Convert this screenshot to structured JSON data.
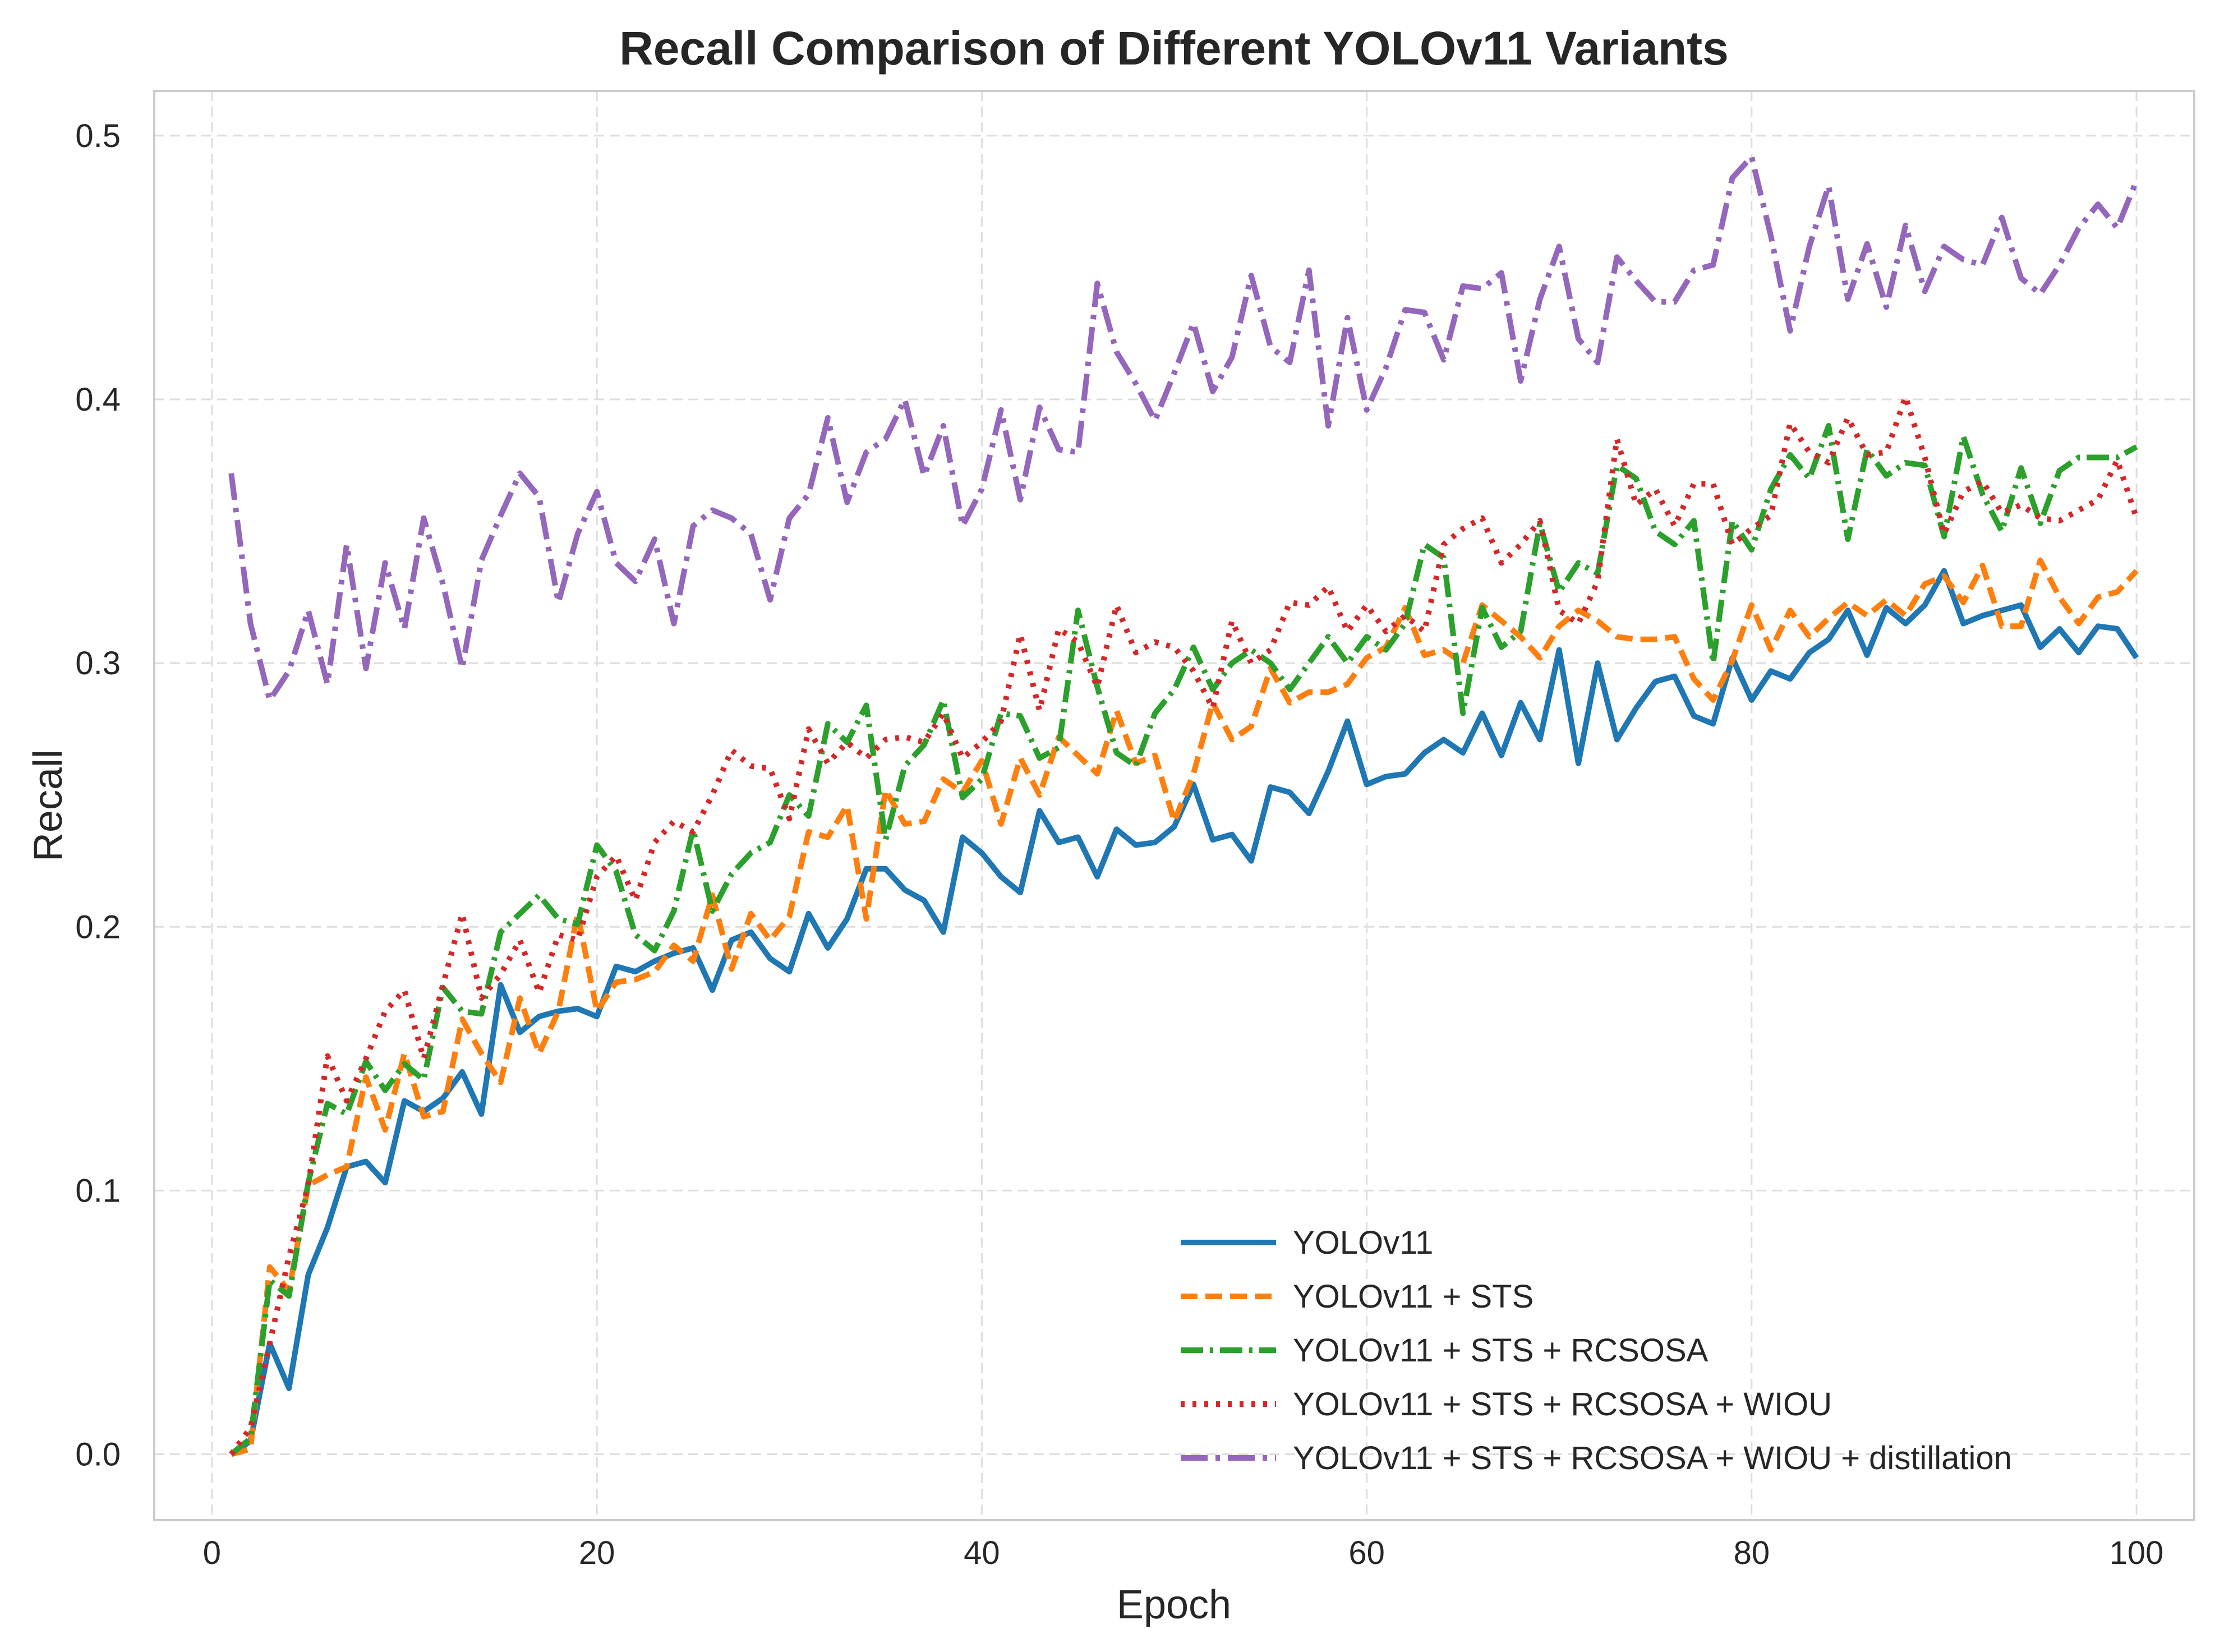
{
  "chart_data": {
    "type": "line",
    "title": "Recall Comparison of Different YOLOv11 Variants",
    "xlabel": "Epoch",
    "ylabel": "Recall",
    "xlim": [
      -3,
      103
    ],
    "ylim": [
      -0.025,
      0.517
    ],
    "xticks": [
      0,
      20,
      40,
      60,
      80,
      100
    ],
    "yticks": [
      0.0,
      0.1,
      0.2,
      0.3,
      0.4,
      0.5
    ],
    "xtick_labels": [
      "0",
      "20",
      "40",
      "60",
      "80",
      "100"
    ],
    "ytick_labels": [
      "0.0",
      "0.1",
      "0.2",
      "0.3",
      "0.4",
      "0.5"
    ],
    "grid": true,
    "legend_position": "lower-right",
    "x": [
      1,
      2,
      3,
      4,
      5,
      6,
      7,
      8,
      9,
      10,
      11,
      12,
      13,
      14,
      15,
      16,
      17,
      18,
      19,
      20,
      21,
      22,
      23,
      24,
      25,
      26,
      27,
      28,
      29,
      30,
      31,
      32,
      33,
      34,
      35,
      36,
      37,
      38,
      39,
      40,
      41,
      42,
      43,
      44,
      45,
      46,
      47,
      48,
      49,
      50,
      51,
      52,
      53,
      54,
      55,
      56,
      57,
      58,
      59,
      60,
      61,
      62,
      63,
      64,
      65,
      66,
      67,
      68,
      69,
      70,
      71,
      72,
      73,
      74,
      75,
      76,
      77,
      78,
      79,
      80,
      81,
      82,
      83,
      84,
      85,
      86,
      87,
      88,
      89,
      90,
      91,
      92,
      93,
      94,
      95,
      96,
      97,
      98,
      99,
      100
    ],
    "series": [
      {
        "name": "YOLOv11",
        "color": "#1f77b4",
        "style": "solid",
        "values": [
          0.0,
          0.005,
          0.042,
          0.025,
          0.068,
          0.086,
          0.109,
          0.111,
          0.103,
          0.134,
          0.13,
          0.135,
          0.145,
          0.129,
          0.178,
          0.16,
          0.166,
          0.168,
          0.169,
          0.166,
          0.185,
          0.183,
          0.187,
          0.19,
          0.192,
          0.176,
          0.195,
          0.198,
          0.188,
          0.183,
          0.205,
          0.192,
          0.203,
          0.222,
          0.222,
          0.214,
          0.21,
          0.198,
          0.234,
          0.228,
          0.219,
          0.213,
          0.244,
          0.232,
          0.234,
          0.219,
          0.237,
          0.231,
          0.232,
          0.238,
          0.254,
          0.233,
          0.235,
          0.225,
          0.253,
          0.251,
          0.243,
          0.259,
          0.278,
          0.254,
          0.257,
          0.258,
          0.266,
          0.271,
          0.266,
          0.281,
          0.265,
          0.285,
          0.271,
          0.305,
          0.262,
          0.3,
          0.271,
          0.283,
          0.293,
          0.295,
          0.28,
          0.277,
          0.302,
          0.286,
          0.297,
          0.294,
          0.304,
          0.309,
          0.32,
          0.303,
          0.321,
          0.315,
          0.322,
          0.335,
          0.315,
          0.318,
          0.32,
          0.322,
          0.306,
          0.313,
          0.304,
          0.314,
          0.313,
          0.302
        ]
      },
      {
        "name": "YOLOv11 + STS",
        "color": "#ff7f0e",
        "style": "dashed",
        "values": [
          0.0,
          0.002,
          0.071,
          0.062,
          0.102,
          0.106,
          0.109,
          0.143,
          0.123,
          0.152,
          0.128,
          0.13,
          0.165,
          0.152,
          0.141,
          0.173,
          0.152,
          0.168,
          0.205,
          0.168,
          0.179,
          0.18,
          0.183,
          0.193,
          0.187,
          0.212,
          0.184,
          0.205,
          0.195,
          0.204,
          0.236,
          0.234,
          0.246,
          0.203,
          0.252,
          0.239,
          0.24,
          0.256,
          0.251,
          0.263,
          0.239,
          0.264,
          0.25,
          0.272,
          0.265,
          0.258,
          0.282,
          0.262,
          0.265,
          0.24,
          0.258,
          0.285,
          0.271,
          0.276,
          0.298,
          0.285,
          0.289,
          0.289,
          0.292,
          0.302,
          0.306,
          0.321,
          0.303,
          0.305,
          0.3,
          0.322,
          0.316,
          0.31,
          0.302,
          0.314,
          0.32,
          0.316,
          0.31,
          0.309,
          0.309,
          0.31,
          0.294,
          0.286,
          0.301,
          0.322,
          0.305,
          0.32,
          0.31,
          0.317,
          0.323,
          0.318,
          0.324,
          0.318,
          0.33,
          0.333,
          0.323,
          0.337,
          0.314,
          0.314,
          0.339,
          0.325,
          0.315,
          0.325,
          0.327,
          0.335
        ]
      },
      {
        "name": "YOLOv11 + STS + RCSOSA",
        "color": "#2ca02c",
        "style": "dashdot",
        "values": [
          0.0,
          0.006,
          0.066,
          0.06,
          0.103,
          0.133,
          0.129,
          0.149,
          0.138,
          0.148,
          0.142,
          0.177,
          0.168,
          0.167,
          0.198,
          0.205,
          0.212,
          0.203,
          0.201,
          0.231,
          0.221,
          0.197,
          0.191,
          0.206,
          0.237,
          0.206,
          0.22,
          0.228,
          0.232,
          0.25,
          0.242,
          0.277,
          0.27,
          0.284,
          0.233,
          0.261,
          0.269,
          0.286,
          0.249,
          0.256,
          0.281,
          0.28,
          0.264,
          0.268,
          0.32,
          0.291,
          0.266,
          0.261,
          0.281,
          0.29,
          0.306,
          0.29,
          0.3,
          0.305,
          0.3,
          0.29,
          0.3,
          0.31,
          0.3,
          0.31,
          0.305,
          0.315,
          0.345,
          0.34,
          0.281,
          0.321,
          0.306,
          0.312,
          0.353,
          0.327,
          0.338,
          0.334,
          0.375,
          0.37,
          0.35,
          0.345,
          0.354,
          0.3,
          0.354,
          0.343,
          0.366,
          0.379,
          0.37,
          0.39,
          0.347,
          0.381,
          0.371,
          0.376,
          0.375,
          0.348,
          0.386,
          0.364,
          0.35,
          0.374,
          0.353,
          0.373,
          0.378,
          0.378,
          0.378,
          0.382
        ]
      },
      {
        "name": "YOLOv11 + STS + RCSOSA + WIOU",
        "color": "#d62728",
        "style": "dotted",
        "values": [
          0.0,
          0.01,
          0.042,
          0.075,
          0.102,
          0.151,
          0.134,
          0.15,
          0.168,
          0.176,
          0.15,
          0.178,
          0.205,
          0.173,
          0.182,
          0.195,
          0.175,
          0.197,
          0.195,
          0.219,
          0.227,
          0.21,
          0.232,
          0.24,
          0.236,
          0.25,
          0.267,
          0.261,
          0.26,
          0.241,
          0.275,
          0.262,
          0.27,
          0.264,
          0.271,
          0.272,
          0.27,
          0.281,
          0.264,
          0.27,
          0.278,
          0.311,
          0.282,
          0.313,
          0.308,
          0.291,
          0.322,
          0.304,
          0.308,
          0.306,
          0.297,
          0.283,
          0.316,
          0.3,
          0.305,
          0.323,
          0.322,
          0.329,
          0.312,
          0.322,
          0.312,
          0.318,
          0.312,
          0.345,
          0.351,
          0.355,
          0.338,
          0.345,
          0.354,
          0.32,
          0.315,
          0.331,
          0.385,
          0.36,
          0.366,
          0.352,
          0.368,
          0.368,
          0.345,
          0.351,
          0.356,
          0.391,
          0.38,
          0.376,
          0.393,
          0.379,
          0.38,
          0.401,
          0.378,
          0.349,
          0.365,
          0.369,
          0.357,
          0.36,
          0.355,
          0.354,
          0.358,
          0.362,
          0.377,
          0.355
        ]
      },
      {
        "name": "YOLOv11 + STS + RCSOSA + WIOU + distillation",
        "color": "#9467bd",
        "style": "longdashdot",
        "values": [
          0.372,
          0.315,
          0.286,
          0.297,
          0.32,
          0.292,
          0.345,
          0.298,
          0.338,
          0.313,
          0.355,
          0.33,
          0.298,
          0.339,
          0.356,
          0.372,
          0.363,
          0.323,
          0.349,
          0.365,
          0.338,
          0.331,
          0.347,
          0.315,
          0.352,
          0.358,
          0.355,
          0.349,
          0.324,
          0.355,
          0.364,
          0.393,
          0.361,
          0.38,
          0.385,
          0.4,
          0.371,
          0.39,
          0.352,
          0.366,
          0.396,
          0.362,
          0.397,
          0.381,
          0.38,
          0.444,
          0.418,
          0.406,
          0.392,
          0.41,
          0.429,
          0.403,
          0.416,
          0.447,
          0.42,
          0.414,
          0.449,
          0.39,
          0.431,
          0.396,
          0.412,
          0.434,
          0.433,
          0.415,
          0.443,
          0.442,
          0.448,
          0.407,
          0.438,
          0.458,
          0.423,
          0.414,
          0.454,
          0.445,
          0.437,
          0.437,
          0.449,
          0.451,
          0.484,
          0.492,
          0.462,
          0.426,
          0.458,
          0.481,
          0.438,
          0.459,
          0.435,
          0.466,
          0.441,
          0.458,
          0.453,
          0.451,
          0.469,
          0.446,
          0.44,
          0.451,
          0.465,
          0.474,
          0.465,
          0.483
        ]
      }
    ]
  }
}
